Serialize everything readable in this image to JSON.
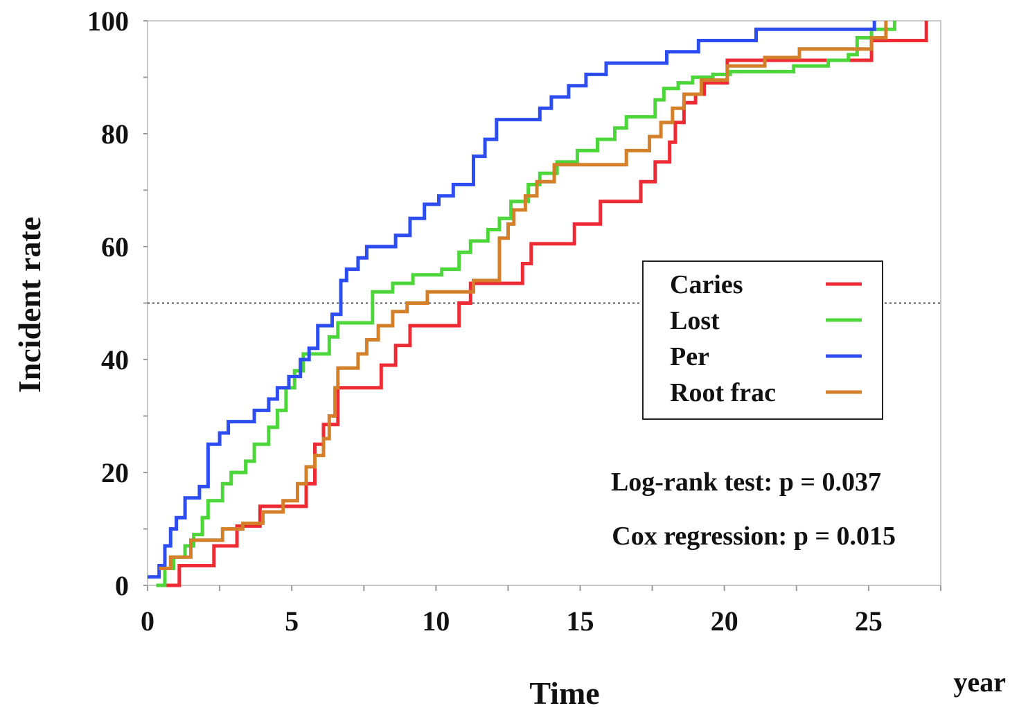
{
  "chart_data": {
    "type": "line",
    "step": true,
    "xlabel": "Time",
    "x_unit": "year",
    "ylabel": "Incident rate",
    "xlim": [
      0,
      27.5
    ],
    "ylim": [
      0,
      100
    ],
    "xticks": [
      0,
      5,
      10,
      15,
      20,
      25
    ],
    "yticks": [
      0,
      20,
      40,
      60,
      80,
      100
    ],
    "x_minor_step": 2.5,
    "y_minor_step": 10,
    "grid": false,
    "reference_line_y": 50,
    "legend_position": "right",
    "series": [
      {
        "name": "Caries",
        "color": "#ee2b35",
        "x": [
          0.3,
          1.1,
          2.3,
          3.1,
          3.9,
          5.5,
          5.8,
          6.1,
          6.6,
          8.1,
          8.6,
          9.1,
          10.8,
          11.2,
          11.6,
          13.0,
          13.3,
          13.7,
          14.8,
          15.7,
          17.1,
          17.6,
          18.1,
          18.3,
          18.6,
          19.0,
          19.3,
          20.1,
          21.1,
          22.0,
          24.1,
          25.1,
          26.7,
          27.0
        ],
        "y": [
          0,
          3.5,
          7,
          10.5,
          14,
          18,
          25,
          28.5,
          35,
          39,
          42.5,
          46,
          50,
          53.5,
          53.5,
          57,
          60.5,
          60.5,
          64,
          68,
          71.5,
          75,
          78.5,
          82,
          85.5,
          87,
          89,
          93,
          93,
          93,
          93,
          96.5,
          96.5,
          100
        ]
      },
      {
        "name": "Lost",
        "color": "#4dd63a",
        "x": [
          0.3,
          0.6,
          0.9,
          1.3,
          1.6,
          1.9,
          2.1,
          2.6,
          2.9,
          3.4,
          3.7,
          4.2,
          4.5,
          4.8,
          5.1,
          5.4,
          6.3,
          6.6,
          7.8,
          8.5,
          9.2,
          10.2,
          10.8,
          11.2,
          11.8,
          12.2,
          12.6,
          13.2,
          13.6,
          14.2,
          14.9,
          15.6,
          16.2,
          16.6,
          17.6,
          17.9,
          18.4,
          18.9,
          19.6,
          20.2,
          21.1,
          22.4,
          23.6,
          24.3,
          24.6,
          25.1,
          25.9
        ],
        "y": [
          0,
          3,
          5,
          7,
          9,
          12,
          15,
          18,
          20,
          22,
          25,
          28,
          31,
          35,
          38,
          41,
          44,
          46.5,
          52,
          53.5,
          55,
          56,
          59,
          61,
          63,
          65,
          68,
          71,
          73,
          75,
          77,
          79,
          81,
          83,
          86,
          88,
          89,
          90,
          90.5,
          91,
          91,
          92,
          93,
          94,
          97,
          98.5,
          100
        ]
      },
      {
        "name": "Per",
        "color": "#2d4df0",
        "x": [
          0,
          0.4,
          0.6,
          0.8,
          1.0,
          1.3,
          1.8,
          2.1,
          2.5,
          2.8,
          3.7,
          4.2,
          4.5,
          4.9,
          5.3,
          5.6,
          5.9,
          6.4,
          6.7,
          6.9,
          7.3,
          7.6,
          8.6,
          9.1,
          9.6,
          10.1,
          10.6,
          11.3,
          11.7,
          12.1,
          12.6,
          13.6,
          14.0,
          14.6,
          15.2,
          15.9,
          16.6,
          18.0,
          19.1,
          21.1,
          23.1,
          25.2
        ],
        "y": [
          1.5,
          3.5,
          7,
          10,
          12,
          15.5,
          17.5,
          25,
          27,
          29,
          31,
          33,
          35,
          37,
          40,
          42,
          46,
          48,
          54,
          56,
          58,
          60,
          62,
          65,
          67.5,
          69,
          71,
          76,
          79,
          82.5,
          82.5,
          84.5,
          86.5,
          88.5,
          90.5,
          92.5,
          92.5,
          94.5,
          96.5,
          98.5,
          98.5,
          100
        ]
      },
      {
        "name": "Root frac",
        "color": "#d47f2a",
        "x": [
          0.4,
          0.8,
          1.5,
          2.6,
          3.3,
          4.0,
          4.7,
          5.2,
          5.5,
          5.8,
          6.1,
          6.3,
          6.5,
          6.6,
          6.8,
          7.3,
          7.6,
          8.0,
          8.5,
          9.0,
          9.7,
          10.6,
          10.9,
          11.3,
          12.2,
          12.5,
          12.7,
          13.1,
          13.5,
          14.1,
          14.8,
          15.6,
          16.6,
          17.4,
          17.8,
          18.2,
          18.6,
          19.2,
          20.1,
          21.4,
          22.6,
          24.2,
          25.1,
          25.6
        ],
        "y": [
          3,
          5,
          8,
          10,
          11,
          13,
          15,
          18,
          21,
          23,
          26,
          30,
          35,
          38.5,
          38.5,
          41,
          43.5,
          46,
          48.5,
          50,
          52,
          52,
          52,
          54,
          61.5,
          64,
          66.5,
          69,
          71.5,
          74.5,
          74.5,
          74.5,
          77,
          79.5,
          82,
          84.5,
          87,
          89.5,
          92,
          93.5,
          95,
          95,
          97,
          100
        ]
      }
    ],
    "annotations": [
      "Log-rank test: p = 0.037",
      "Cox regression: p = 0.015"
    ]
  }
}
